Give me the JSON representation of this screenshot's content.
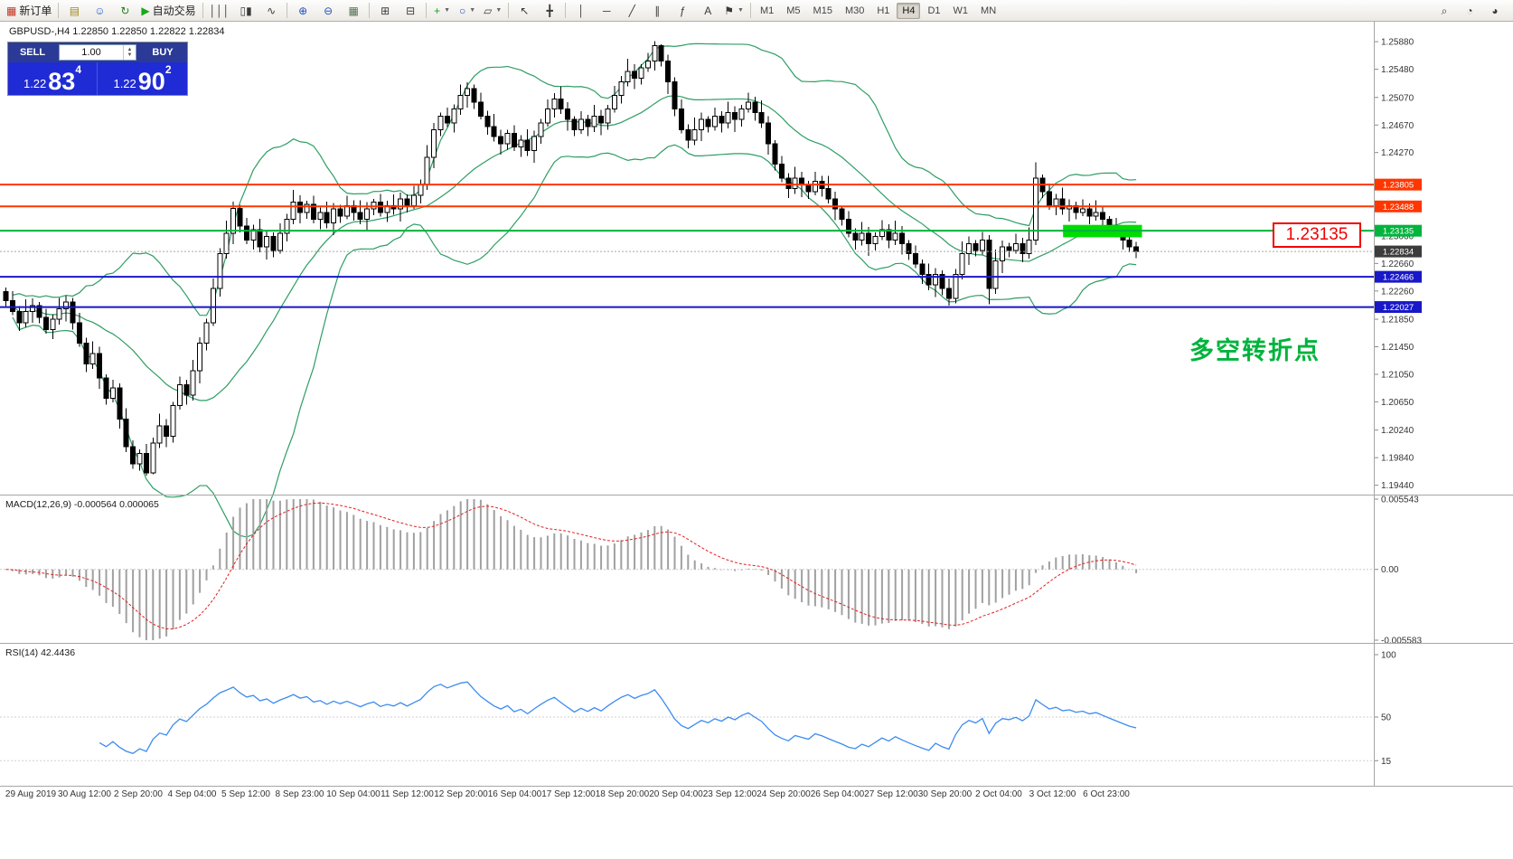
{
  "toolbar": {
    "buttons": [
      {
        "name": "new-order-button",
        "glyph": "▦",
        "glyph_color": "#c03020",
        "label": "新订单"
      },
      {
        "name": "sep"
      },
      {
        "name": "profiles-button",
        "glyph": "▤",
        "glyph_color": "#a08820"
      },
      {
        "name": "market-watch-button",
        "glyph": "☺",
        "glyph_color": "#2864c8"
      },
      {
        "name": "refresh-button",
        "glyph": "↻",
        "glyph_color": "#208020"
      },
      {
        "name": "auto-trading-button",
        "glyph": "▶",
        "glyph_color": "#18a818",
        "label": "自动交易"
      },
      {
        "name": "sep"
      },
      {
        "name": "bar-chart-button",
        "glyph": "│││"
      },
      {
        "name": "candlestick-chart-button",
        "glyph": "▯▮"
      },
      {
        "name": "line-chart-button",
        "glyph": "∿"
      },
      {
        "name": "sep"
      },
      {
        "name": "zoom-in-button",
        "glyph": "⊕",
        "glyph_color": "#2050c0"
      },
      {
        "name": "zoom-out-button",
        "glyph": "⊖",
        "glyph_color": "#2050c0"
      },
      {
        "name": "grid-button",
        "glyph": "▦",
        "glyph_color": "#507050"
      },
      {
        "name": "sep"
      },
      {
        "name": "tile-windows-button",
        "glyph": "⊞"
      },
      {
        "name": "cascade-windows-button",
        "glyph": "⊟"
      },
      {
        "name": "sep"
      },
      {
        "name": "indicators-button",
        "glyph": "+",
        "glyph_color": "#18a818",
        "caret": true
      },
      {
        "name": "objects-button",
        "glyph": "○",
        "glyph_color": "#2050c0",
        "caret": true
      },
      {
        "name": "templates-button",
        "glyph": "▱",
        "caret": true
      },
      {
        "name": "sep"
      },
      {
        "name": "cursor-button",
        "glyph": "↖"
      },
      {
        "name": "crosshair-button",
        "glyph": "╋"
      },
      {
        "name": "sep"
      },
      {
        "name": "vertical-line-button",
        "glyph": "│"
      },
      {
        "name": "horizontal-line-button",
        "glyph": "─"
      },
      {
        "name": "trendline-button",
        "glyph": "╱"
      },
      {
        "name": "equidistant-channel-button",
        "glyph": "∥"
      },
      {
        "name": "fibonacci-button",
        "glyph": "ƒ"
      },
      {
        "name": "text-label-button",
        "glyph": "A"
      },
      {
        "name": "arrows-button",
        "glyph": "⚑",
        "caret": true
      },
      {
        "name": "sep"
      }
    ],
    "timeframes": [
      "M1",
      "M5",
      "M15",
      "M30",
      "H1",
      "H4",
      "D1",
      "W1",
      "MN"
    ],
    "active_timeframe": "H4",
    "right_buttons": [
      {
        "name": "search-button",
        "glyph": "⌕"
      },
      {
        "name": "help-button",
        "glyph": "◔"
      },
      {
        "name": "community-button",
        "glyph": "◕"
      }
    ]
  },
  "one_click": {
    "sell_label": "SELL",
    "buy_label": "BUY",
    "volume": "1.00",
    "sell_price_big": "1.22",
    "sell_price_pips": "83",
    "sell_price_sup": "4",
    "buy_price_big": "1.22",
    "buy_price_pips": "90",
    "buy_price_sup": "2"
  },
  "chart_header": "GBPUSD-,H4  1.22850 1.22850 1.22822 1.22834",
  "annotation": {
    "text": "多空转折点",
    "color": "#00b33c"
  },
  "callout": {
    "text": "1.23135",
    "color": "#f00000"
  },
  "macd_panel": {
    "title": "MACD(12,26,9) -0.000564 0.000065",
    "scale": [
      "0.005543",
      "0.00",
      "-0.005583"
    ]
  },
  "rsi_panel": {
    "title": "RSI(14) 42.4436",
    "scale": [
      "100",
      "50",
      "15"
    ]
  },
  "chart_data": {
    "type": "candlestick",
    "symbol": "GBPUSD",
    "timeframe": "H4",
    "y_range": [
      1.1933,
      1.2617
    ],
    "price_ticks": [
      "1.25880",
      "1.25480",
      "1.25070",
      "1.24670",
      "1.24270",
      "1.23060",
      "1.22660",
      "1.22260",
      "1.21850",
      "1.21450",
      "1.21050",
      "1.20650",
      "1.20240",
      "1.19840",
      "1.19440"
    ],
    "hlines": [
      {
        "price": 1.23805,
        "color": "#ff3600",
        "label": "1.23805",
        "width": 2
      },
      {
        "price": 1.23488,
        "color": "#ff3600",
        "label": "1.23488",
        "width": 2
      },
      {
        "price": 1.23135,
        "color": "#00b43c",
        "label": "1.23135",
        "width": 2
      },
      {
        "price": 1.22466,
        "color": "#1818c8",
        "label": "1.22466",
        "width": 2
      },
      {
        "price": 1.22027,
        "color": "#1818c8",
        "label": "1.22027",
        "width": 2
      }
    ],
    "current_price": {
      "price": 1.22834,
      "label": "1.22834",
      "color": "#3c3c3c"
    },
    "highlight_box": {
      "from_index": 158.4,
      "to_index": 170.2,
      "price_top": 1.2322,
      "price_bottom": 1.2304,
      "color": "#00dc00"
    },
    "bollinger": {
      "period": 20,
      "deviation": 2,
      "color": "#2e9e63"
    },
    "macd": {
      "fast": 12,
      "slow": 26,
      "signal": 9,
      "range": [
        -0.005583,
        0.005543
      ],
      "histogram_color": "#a0a0a0",
      "signal_color": "#e02020"
    },
    "rsi": {
      "period": 14,
      "color": "#3c8cf0",
      "range": [
        0,
        100
      ],
      "levels": [
        50,
        15
      ]
    },
    "time_labels": [
      "29 Aug 2019",
      "30 Aug 12:00",
      "2 Sep 20:00",
      "4 Sep 04:00",
      "5 Sep 12:00",
      "8 Sep 23:00",
      "10 Sep 04:00",
      "11 Sep 12:00",
      "12 Sep 20:00",
      "16 Sep 04:00",
      "17 Sep 12:00",
      "18 Sep 20:00",
      "20 Sep 04:00",
      "23 Sep 12:00",
      "24 Sep 20:00",
      "26 Sep 04:00",
      "27 Sep 12:00",
      "30 Sep 20:00",
      "2 Oct 04:00",
      "3 Oct 12:00",
      "6 Oct 23:00"
    ],
    "candles": [
      [
        1.2225,
        1.2231,
        1.2202,
        1.2212
      ],
      [
        1.2212,
        1.2226,
        1.2191,
        1.2196
      ],
      [
        1.2196,
        1.2204,
        1.2168,
        1.218
      ],
      [
        1.218,
        1.2214,
        1.2173,
        1.2196
      ],
      [
        1.2196,
        1.2215,
        1.218,
        1.2205
      ],
      [
        1.2205,
        1.221,
        1.2179,
        1.2188
      ],
      [
        1.2188,
        1.22,
        1.2164,
        1.217
      ],
      [
        1.217,
        1.2192,
        1.2156,
        1.2185
      ],
      [
        1.2185,
        1.2216,
        1.2177,
        1.22
      ],
      [
        1.22,
        1.2219,
        1.2182,
        1.221
      ],
      [
        1.221,
        1.2216,
        1.217,
        1.218
      ],
      [
        1.218,
        1.2194,
        1.2145,
        1.215
      ],
      [
        1.215,
        1.2158,
        1.2108,
        1.212
      ],
      [
        1.212,
        1.2153,
        1.2113,
        1.2135
      ],
      [
        1.2135,
        1.2145,
        1.2084,
        1.21
      ],
      [
        1.21,
        1.2105,
        1.2061,
        1.207
      ],
      [
        1.207,
        1.2097,
        1.2064,
        1.2085
      ],
      [
        1.2085,
        1.2092,
        1.2026,
        1.204
      ],
      [
        1.204,
        1.2056,
        1.1992,
        1.2
      ],
      [
        1.2,
        1.2009,
        1.1968,
        1.1975
      ],
      [
        1.1975,
        1.1996,
        1.1965,
        1.199
      ],
      [
        1.199,
        1.2004,
        1.1958,
        1.1962
      ],
      [
        1.1962,
        1.2013,
        1.196,
        1.2005
      ],
      [
        1.2005,
        1.2048,
        1.1998,
        1.203
      ],
      [
        1.203,
        1.204,
        1.1999,
        1.2015
      ],
      [
        1.2015,
        1.2065,
        1.2006,
        1.206
      ],
      [
        1.206,
        1.2102,
        1.2054,
        1.209
      ],
      [
        1.209,
        1.2097,
        1.2061,
        1.2075
      ],
      [
        1.2075,
        1.2126,
        1.2067,
        1.211
      ],
      [
        1.211,
        1.2159,
        1.2092,
        1.215
      ],
      [
        1.215,
        1.2186,
        1.214,
        1.218
      ],
      [
        1.218,
        1.2244,
        1.2175,
        1.223
      ],
      [
        1.223,
        1.2288,
        1.2218,
        1.228
      ],
      [
        1.228,
        1.2328,
        1.2273,
        1.231
      ],
      [
        1.231,
        1.2356,
        1.2294,
        1.2346
      ],
      [
        1.2346,
        1.2351,
        1.2311,
        1.232
      ],
      [
        1.232,
        1.2332,
        1.2294,
        1.23
      ],
      [
        1.23,
        1.2322,
        1.2286,
        1.2315
      ],
      [
        1.2315,
        1.2331,
        1.2282,
        1.229
      ],
      [
        1.229,
        1.2314,
        1.2272,
        1.2305
      ],
      [
        1.2305,
        1.2311,
        1.2275,
        1.2285
      ],
      [
        1.2285,
        1.2324,
        1.228,
        1.231
      ],
      [
        1.231,
        1.2338,
        1.2298,
        1.233
      ],
      [
        1.233,
        1.2373,
        1.2323,
        1.2355
      ],
      [
        1.2355,
        1.2365,
        1.2324,
        1.234
      ],
      [
        1.234,
        1.2357,
        1.2331,
        1.2352
      ],
      [
        1.2352,
        1.2364,
        1.2324,
        1.233
      ],
      [
        1.233,
        1.2347,
        1.2316,
        1.234
      ],
      [
        1.234,
        1.2356,
        1.2317,
        1.2325
      ],
      [
        1.2325,
        1.2354,
        1.2307,
        1.2345
      ],
      [
        1.2345,
        1.2351,
        1.2325,
        1.2335
      ],
      [
        1.2335,
        1.2364,
        1.233,
        1.235
      ],
      [
        1.235,
        1.2358,
        1.2328,
        1.234
      ],
      [
        1.234,
        1.2358,
        1.2323,
        1.233
      ],
      [
        1.233,
        1.2355,
        1.2314,
        1.2345
      ],
      [
        1.2345,
        1.236,
        1.2336,
        1.2355
      ],
      [
        1.2355,
        1.2367,
        1.2334,
        1.234
      ],
      [
        1.234,
        1.2357,
        1.2326,
        1.235
      ],
      [
        1.235,
        1.2366,
        1.2337,
        1.2345
      ],
      [
        1.2345,
        1.2369,
        1.2327,
        1.236
      ],
      [
        1.236,
        1.2366,
        1.234,
        1.235
      ],
      [
        1.235,
        1.2379,
        1.2345,
        1.2365
      ],
      [
        1.2365,
        1.2388,
        1.2353,
        1.238
      ],
      [
        1.238,
        1.2438,
        1.2373,
        1.242
      ],
      [
        1.242,
        1.247,
        1.2404,
        1.246
      ],
      [
        1.246,
        1.2485,
        1.2451,
        1.248
      ],
      [
        1.248,
        1.2492,
        1.2464,
        1.247
      ],
      [
        1.247,
        1.2497,
        1.2456,
        1.249
      ],
      [
        1.249,
        1.2526,
        1.2482,
        1.251
      ],
      [
        1.251,
        1.2529,
        1.2492,
        1.252
      ],
      [
        1.252,
        1.2526,
        1.249,
        1.25
      ],
      [
        1.25,
        1.2514,
        1.2475,
        1.248
      ],
      [
        1.248,
        1.2488,
        1.2453,
        1.2465
      ],
      [
        1.2465,
        1.2483,
        1.2443,
        1.245
      ],
      [
        1.245,
        1.246,
        1.2424,
        1.244
      ],
      [
        1.244,
        1.246,
        1.2431,
        1.2455
      ],
      [
        1.2455,
        1.2467,
        1.2429,
        1.2435
      ],
      [
        1.2435,
        1.2452,
        1.2421,
        1.2445
      ],
      [
        1.2445,
        1.2461,
        1.2422,
        1.243
      ],
      [
        1.243,
        1.2459,
        1.2412,
        1.245
      ],
      [
        1.245,
        1.2476,
        1.244,
        1.247
      ],
      [
        1.247,
        1.2504,
        1.2465,
        1.249
      ],
      [
        1.249,
        1.2513,
        1.2478,
        1.2505
      ],
      [
        1.2505,
        1.2523,
        1.2483,
        1.249
      ],
      [
        1.249,
        1.25,
        1.2459,
        1.2475
      ],
      [
        1.2475,
        1.248,
        1.2451,
        1.246
      ],
      [
        1.246,
        1.2487,
        1.2454,
        1.2475
      ],
      [
        1.2475,
        1.2482,
        1.2451,
        1.2465
      ],
      [
        1.2465,
        1.2496,
        1.2457,
        1.248
      ],
      [
        1.248,
        1.2489,
        1.2452,
        1.247
      ],
      [
        1.247,
        1.2496,
        1.246,
        1.249
      ],
      [
        1.249,
        1.2524,
        1.2485,
        1.251
      ],
      [
        1.251,
        1.2538,
        1.2498,
        1.253
      ],
      [
        1.253,
        1.2563,
        1.2523,
        1.2545
      ],
      [
        1.2545,
        1.2555,
        1.2519,
        1.2535
      ],
      [
        1.2535,
        1.2555,
        1.2526,
        1.255
      ],
      [
        1.255,
        1.2572,
        1.2544,
        1.256
      ],
      [
        1.256,
        1.2589,
        1.2546,
        1.2582
      ],
      [
        1.2582,
        1.2584,
        1.2552,
        1.256
      ],
      [
        1.256,
        1.2569,
        1.2512,
        1.253
      ],
      [
        1.253,
        1.2536,
        1.248,
        1.249
      ],
      [
        1.249,
        1.2504,
        1.2455,
        1.246
      ],
      [
        1.246,
        1.2468,
        1.2433,
        1.2445
      ],
      [
        1.2445,
        1.2478,
        1.2438,
        1.246
      ],
      [
        1.246,
        1.2485,
        1.2444,
        1.2475
      ],
      [
        1.2475,
        1.248,
        1.2456,
        1.2465
      ],
      [
        1.2465,
        1.2492,
        1.2459,
        1.248
      ],
      [
        1.248,
        1.2487,
        1.2456,
        1.247
      ],
      [
        1.247,
        1.2501,
        1.2462,
        1.2485
      ],
      [
        1.2485,
        1.2494,
        1.2457,
        1.2475
      ],
      [
        1.2475,
        1.2496,
        1.2465,
        1.249
      ],
      [
        1.249,
        1.2514,
        1.2485,
        1.25
      ],
      [
        1.25,
        1.2508,
        1.2473,
        1.2485
      ],
      [
        1.2485,
        1.2503,
        1.2463,
        1.247
      ],
      [
        1.247,
        1.248,
        1.2424,
        1.244
      ],
      [
        1.244,
        1.2445,
        1.2401,
        1.241
      ],
      [
        1.241,
        1.2422,
        1.2384,
        1.239
      ],
      [
        1.239,
        1.2397,
        1.2361,
        1.2375
      ],
      [
        1.2375,
        1.2406,
        1.2367,
        1.239
      ],
      [
        1.239,
        1.2399,
        1.2362,
        1.238
      ],
      [
        1.238,
        1.2386,
        1.236,
        1.237
      ],
      [
        1.237,
        1.2399,
        1.2365,
        1.2385
      ],
      [
        1.2385,
        1.2393,
        1.2363,
        1.2375
      ],
      [
        1.2375,
        1.2393,
        1.2353,
        1.236
      ],
      [
        1.236,
        1.237,
        1.2329,
        1.2345
      ],
      [
        1.2345,
        1.235,
        1.2321,
        1.233
      ],
      [
        1.233,
        1.2342,
        1.2304,
        1.231
      ],
      [
        1.231,
        1.2317,
        1.2286,
        1.23
      ],
      [
        1.23,
        1.2326,
        1.2292,
        1.231
      ],
      [
        1.231,
        1.2319,
        1.2277,
        1.2295
      ],
      [
        1.2295,
        1.2311,
        1.2285,
        1.2305
      ],
      [
        1.2305,
        1.2329,
        1.23,
        1.2315
      ],
      [
        1.2315,
        1.2323,
        1.2288,
        1.23
      ],
      [
        1.23,
        1.2328,
        1.2293,
        1.231
      ],
      [
        1.231,
        1.232,
        1.2279,
        1.2295
      ],
      [
        1.2295,
        1.23,
        1.2271,
        1.228
      ],
      [
        1.228,
        1.2292,
        1.2259,
        1.2265
      ],
      [
        1.2265,
        1.2272,
        1.2236,
        1.225
      ],
      [
        1.225,
        1.2266,
        1.2227,
        1.2235
      ],
      [
        1.2235,
        1.2259,
        1.2217,
        1.225
      ],
      [
        1.225,
        1.2256,
        1.222,
        1.223
      ],
      [
        1.223,
        1.2244,
        1.2205,
        1.2215
      ],
      [
        1.2215,
        1.2258,
        1.2208,
        1.225
      ],
      [
        1.225,
        1.2298,
        1.2243,
        1.228
      ],
      [
        1.228,
        1.2305,
        1.2264,
        1.2295
      ],
      [
        1.2295,
        1.23,
        1.2276,
        1.2285
      ],
      [
        1.2285,
        1.2312,
        1.2279,
        1.23
      ],
      [
        1.23,
        1.2307,
        1.2207,
        1.223
      ],
      [
        1.223,
        1.2286,
        1.2222,
        1.227
      ],
      [
        1.227,
        1.2299,
        1.2252,
        1.229
      ],
      [
        1.229,
        1.2296,
        1.2275,
        1.2285
      ],
      [
        1.2285,
        1.2309,
        1.228,
        1.2295
      ],
      [
        1.2295,
        1.2303,
        1.2268,
        1.228
      ],
      [
        1.228,
        1.2318,
        1.2273,
        1.23
      ],
      [
        1.23,
        1.2413,
        1.2293,
        1.239
      ],
      [
        1.239,
        1.2395,
        1.2361,
        1.237
      ],
      [
        1.237,
        1.2382,
        1.2344,
        1.235
      ],
      [
        1.235,
        1.2367,
        1.2336,
        1.236
      ],
      [
        1.236,
        1.2376,
        1.2337,
        1.2345
      ],
      [
        1.2345,
        1.2359,
        1.2327,
        1.235
      ],
      [
        1.235,
        1.2356,
        1.233,
        1.234
      ],
      [
        1.234,
        1.2359,
        1.2335,
        1.2345
      ],
      [
        1.2345,
        1.2353,
        1.2323,
        1.2335
      ],
      [
        1.2335,
        1.2358,
        1.2328,
        1.234
      ],
      [
        1.234,
        1.235,
        1.2314,
        1.233
      ],
      [
        1.233,
        1.2335,
        1.2311,
        1.232
      ],
      [
        1.232,
        1.2332,
        1.2304,
        1.231
      ],
      [
        1.231,
        1.2317,
        1.2286,
        1.23
      ],
      [
        1.23,
        1.2316,
        1.2282,
        1.229
      ],
      [
        1.229,
        1.2297,
        1.2274,
        1.22834
      ]
    ]
  }
}
